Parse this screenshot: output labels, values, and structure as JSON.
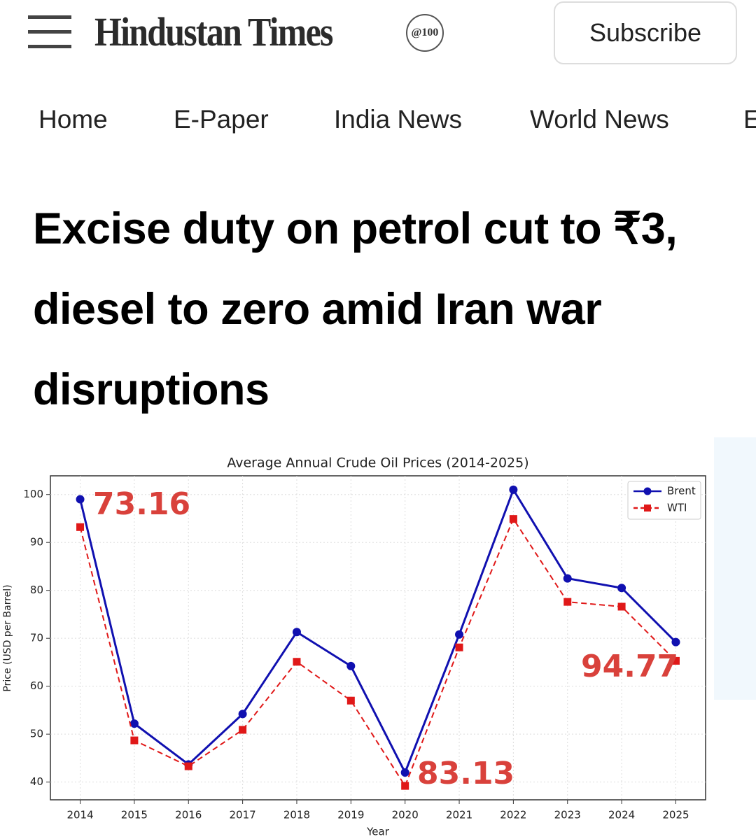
{
  "header": {
    "logo": "Hindustan Times",
    "badge": "@100",
    "subscribe": "Subscribe"
  },
  "nav": [
    "Home",
    "E-Paper",
    "India News",
    "World News",
    "E"
  ],
  "headline": "Excise duty on petrol cut to ₹3, diesel to zero amid Iran war disruptions",
  "chart_data": {
    "type": "line",
    "title": "Average Annual Crude Oil Prices (2014-2025)",
    "x_label": "Year",
    "y_label": "Price (USD per Barrel)",
    "x": [
      2014,
      2015,
      2016,
      2017,
      2018,
      2019,
      2020,
      2021,
      2022,
      2023,
      2024,
      2025
    ],
    "series": [
      {
        "name": "Brent",
        "color": "#1010b0",
        "values": [
          99,
          52.2,
          43.7,
          54.2,
          71.3,
          64.2,
          42,
          70.8,
          101,
          82.5,
          80.5,
          69.2
        ]
      },
      {
        "name": "WTI",
        "color": "#e01818",
        "values": [
          93.2,
          48.7,
          43.3,
          50.9,
          65.1,
          57,
          39.2,
          68.1,
          94.9,
          77.6,
          76.6,
          65.3
        ]
      }
    ],
    "xlim": [
      2013.45,
      2025.55
    ],
    "xticks": [
      2014,
      2015,
      2016,
      2017,
      2018,
      2019,
      2020,
      2021,
      2022,
      2023,
      2024,
      2025
    ],
    "ylim": [
      36.3,
      103.9
    ],
    "yticks": [
      40,
      50,
      60,
      70,
      80,
      90,
      100
    ],
    "grid": true,
    "legend": "upper right",
    "annotations": [
      "73.16",
      "83.13",
      "94.77"
    ]
  }
}
